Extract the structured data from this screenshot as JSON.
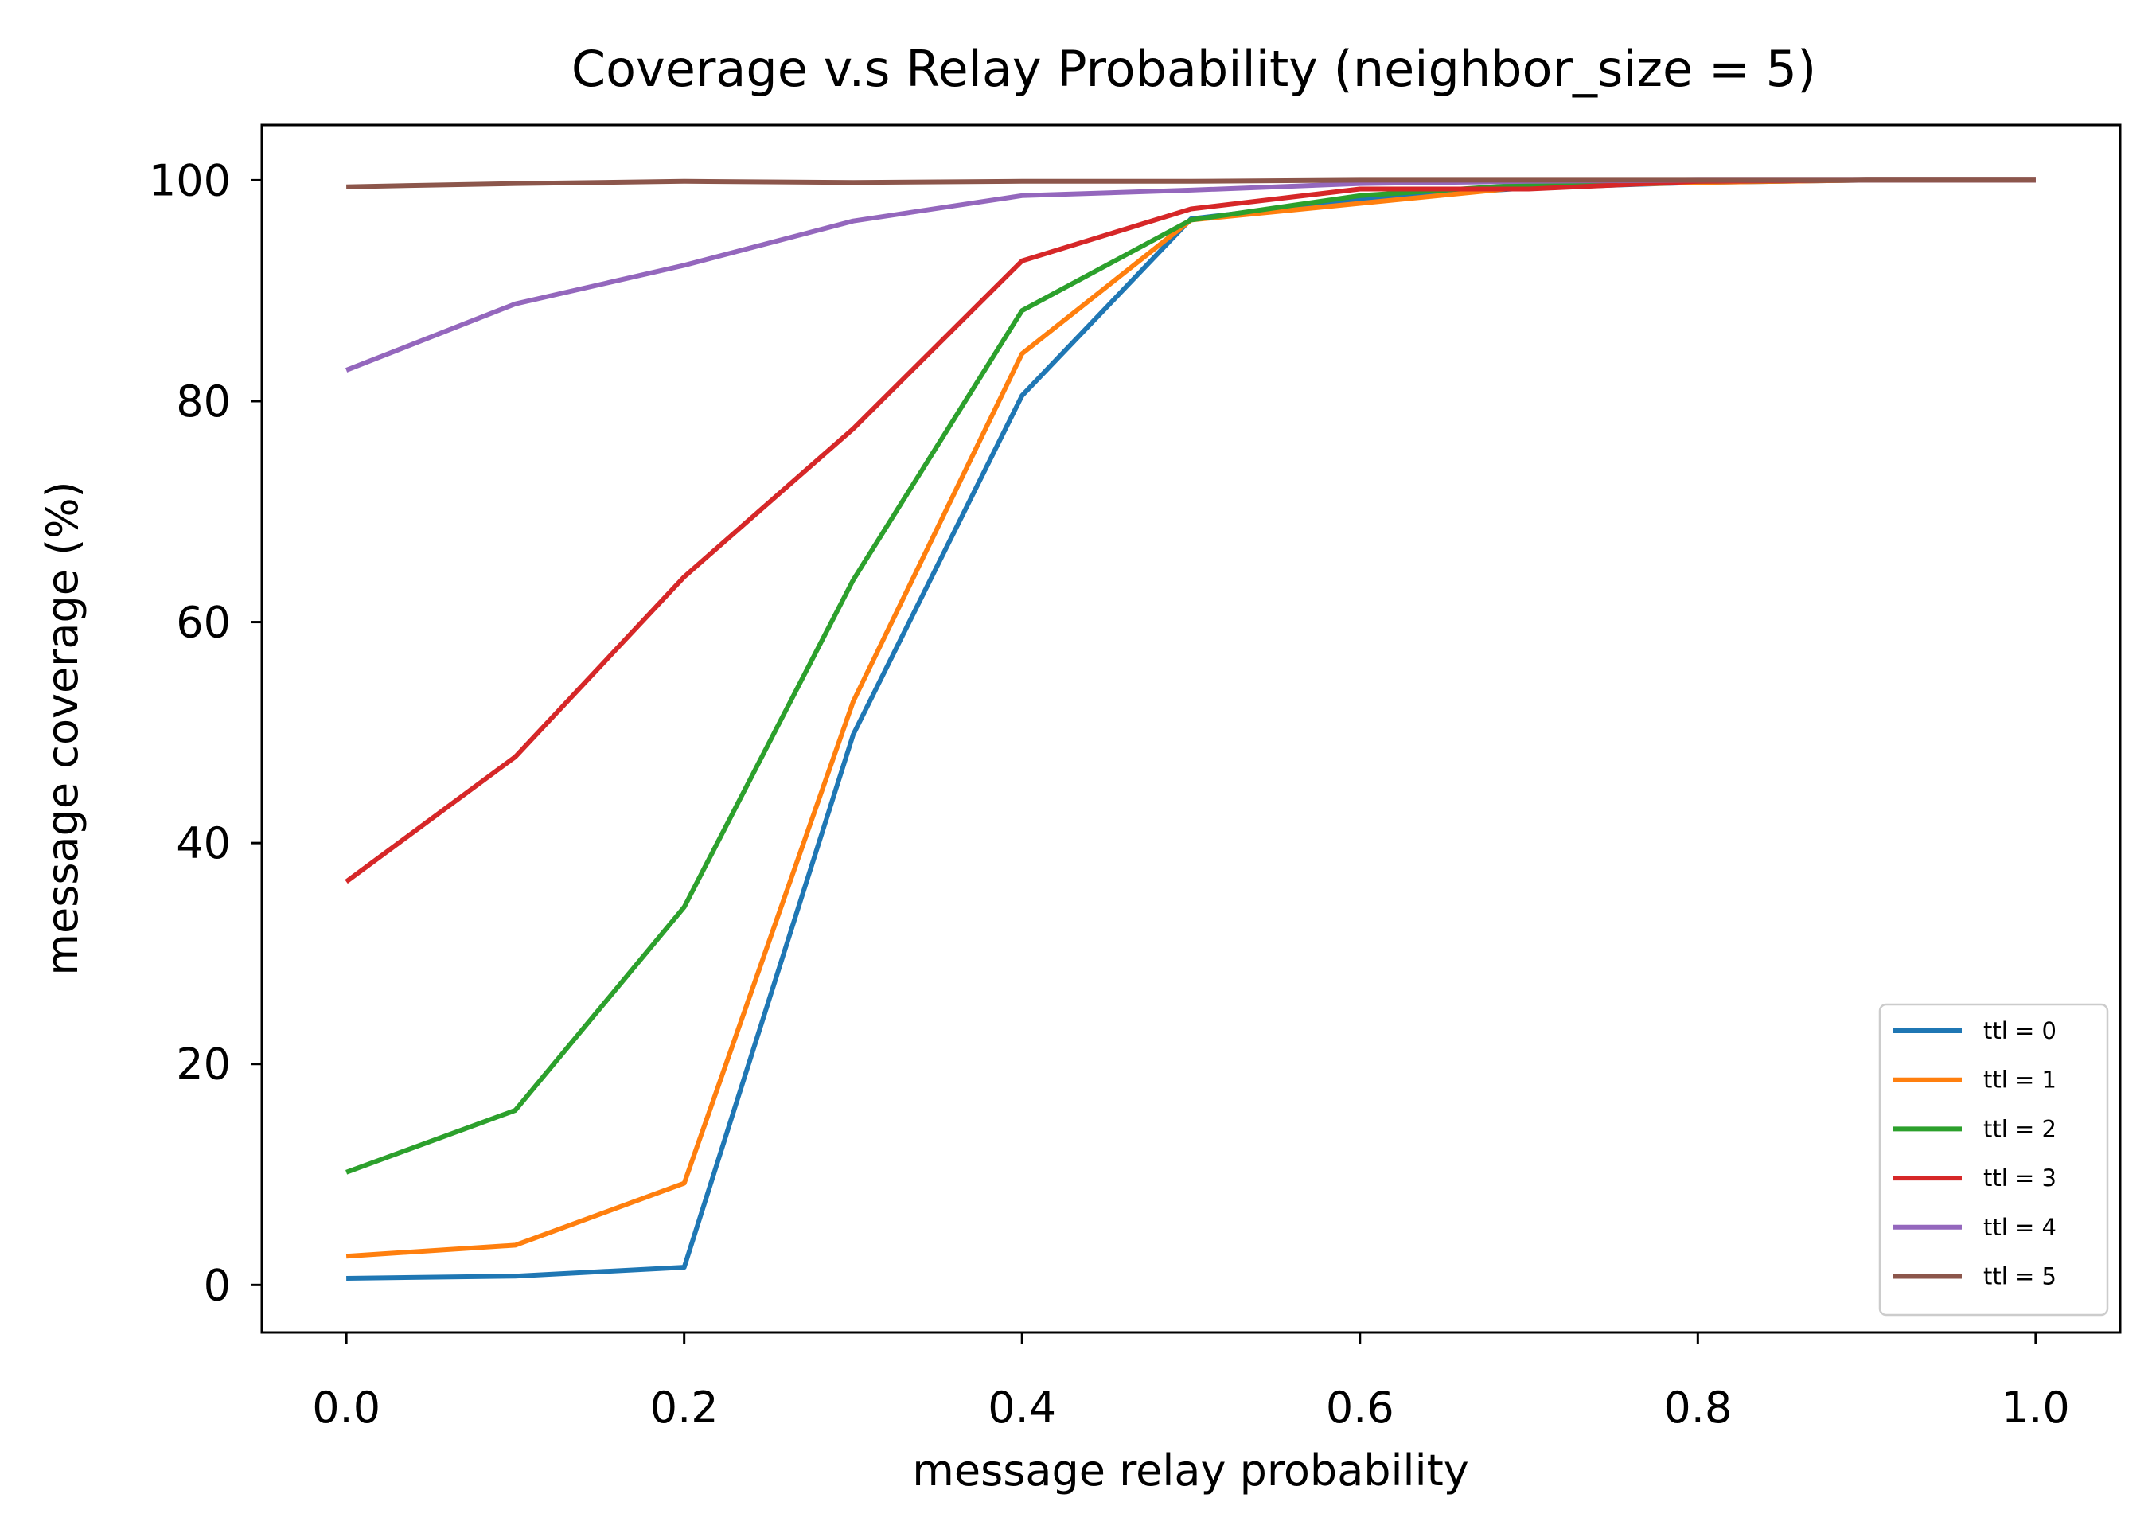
{
  "chart_data": {
    "type": "line",
    "title": "Coverage v.s Relay Probability (neighbor_size = 5)",
    "xlabel": "message relay probability",
    "ylabel": "message coverage (%)",
    "xlim": [
      -0.05,
      1.05
    ],
    "ylim": [
      -4.3,
      105.0
    ],
    "xticks": [
      0.0,
      0.2,
      0.4,
      0.6,
      0.8,
      1.0
    ],
    "xtick_labels": [
      "0.0",
      "0.2",
      "0.4",
      "0.6",
      "0.8",
      "1.0"
    ],
    "yticks": [
      0,
      20,
      40,
      60,
      80,
      100
    ],
    "ytick_labels": [
      "0",
      "20",
      "40",
      "60",
      "80",
      "100"
    ],
    "grid": false,
    "legend_position": "lower right",
    "x": [
      0.0,
      0.1,
      0.2,
      0.3,
      0.4,
      0.5,
      0.6,
      0.7,
      0.8,
      0.9,
      1.0
    ],
    "series": [
      {
        "name": "ttl = 0",
        "color": "#1f77b4",
        "values": [
          0.6,
          0.8,
          1.6,
          49.8,
          80.5,
          96.5,
          98.3,
          99.3,
          99.8,
          100.0,
          100.0
        ]
      },
      {
        "name": "ttl = 1",
        "color": "#ff7f0e",
        "values": [
          2.6,
          3.6,
          9.2,
          52.8,
          84.3,
          96.4,
          97.9,
          99.4,
          99.8,
          100.0,
          100.0
        ]
      },
      {
        "name": "ttl = 2",
        "color": "#2ca02c",
        "values": [
          10.2,
          15.8,
          34.2,
          63.8,
          88.2,
          96.4,
          98.6,
          99.6,
          99.9,
          100.0,
          100.0
        ]
      },
      {
        "name": "ttl = 3",
        "color": "#d62728",
        "values": [
          36.5,
          47.8,
          64.1,
          77.5,
          92.7,
          97.4,
          99.2,
          99.2,
          99.9,
          100.0,
          100.0
        ]
      },
      {
        "name": "ttl = 4",
        "color": "#9467bd",
        "values": [
          82.8,
          88.8,
          92.3,
          96.3,
          98.6,
          99.1,
          99.7,
          99.9,
          100.0,
          100.0,
          100.0
        ]
      },
      {
        "name": "ttl = 5",
        "color": "#8c564b",
        "values": [
          99.4,
          99.7,
          99.9,
          99.8,
          99.9,
          99.9,
          100.0,
          100.0,
          100.0,
          100.0,
          100.0
        ]
      }
    ]
  }
}
